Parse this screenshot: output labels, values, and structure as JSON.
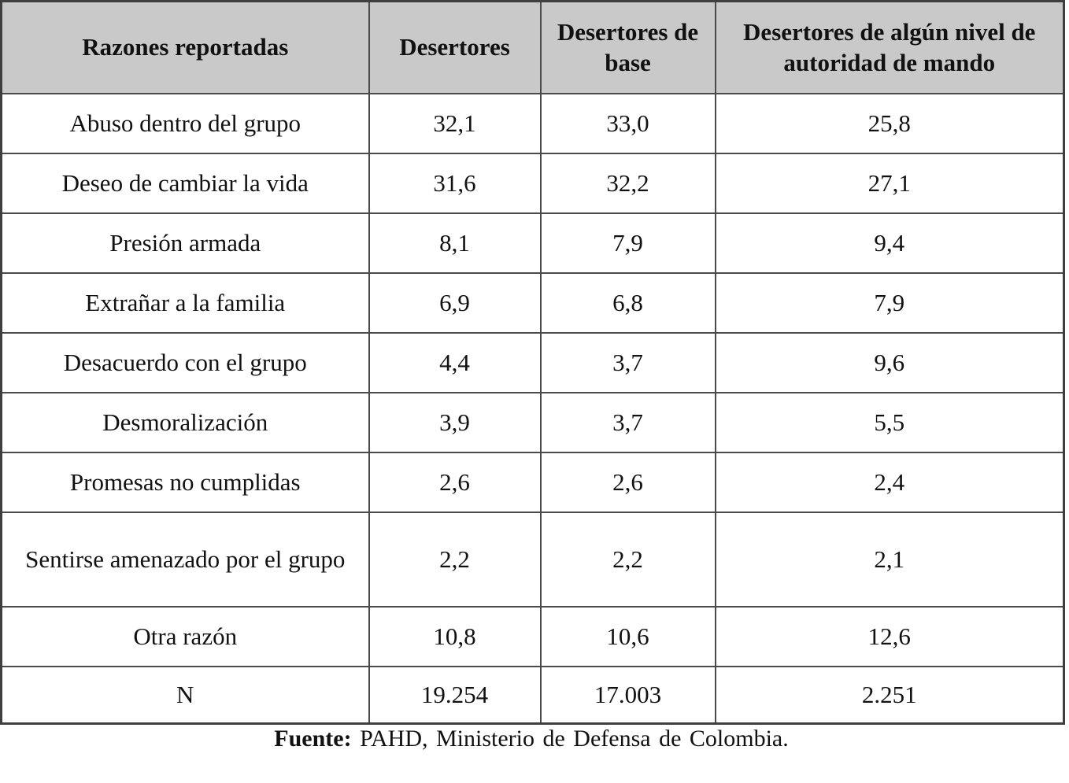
{
  "page": {
    "background": "#ffffff",
    "text_color": "#111111"
  },
  "table": {
    "header_bg": "#c9c9c9",
    "border_color": "#4a4a4a",
    "columns": [
      "Razones reportadas",
      "Desertores",
      "Desertores de base",
      "Desertores de algún nivel de autoridad de mando"
    ],
    "rows": [
      {
        "label": "Abuso dentro del grupo",
        "values": [
          "32,1",
          "33,0",
          "25,8"
        ]
      },
      {
        "label": "Deseo de cambiar la vida",
        "values": [
          "31,6",
          "32,2",
          "27,1"
        ]
      },
      {
        "label": "Presión armada",
        "values": [
          "8,1",
          "7,9",
          "9,4"
        ]
      },
      {
        "label": "Extrañar a la familia",
        "values": [
          "6,9",
          "6,8",
          "7,9"
        ]
      },
      {
        "label": "Desacuerdo con el grupo",
        "values": [
          "4,4",
          "3,7",
          "9,6"
        ]
      },
      {
        "label": "Desmoralización",
        "values": [
          "3,9",
          "3,7",
          "5,5"
        ]
      },
      {
        "label": "Promesas no cumplidas",
        "values": [
          "2,6",
          "2,6",
          "2,4"
        ]
      },
      {
        "label": "Sentirse amenazado por el grupo",
        "values": [
          "2,2",
          "2,2",
          "2,1"
        ]
      },
      {
        "label": "Otra razón",
        "values": [
          "10,8",
          "10,6",
          "12,6"
        ]
      },
      {
        "label": "N",
        "values": [
          "19.254",
          "17.003",
          "2.251"
        ]
      }
    ]
  },
  "footer": {
    "label": "Fuente:",
    "text": " PAHD, Ministerio de Defensa de Colombia."
  }
}
